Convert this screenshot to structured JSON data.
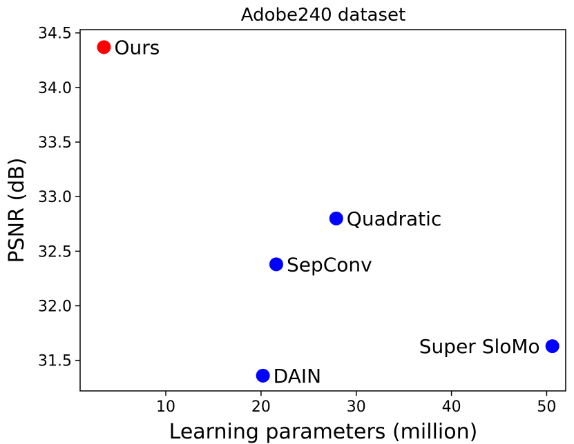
{
  "chart_data": {
    "type": "scatter",
    "title": "Adobe240 dataset",
    "xlabel": "Learning parameters (million)",
    "ylabel": "PSNR (dB)",
    "xlim": [
      1,
      52
    ],
    "ylim": [
      31.22,
      34.53
    ],
    "xticks": [
      10,
      20,
      30,
      40,
      50
    ],
    "yticks": [
      31.5,
      32.0,
      32.5,
      33.0,
      33.5,
      34.0,
      34.5
    ],
    "tick_labels_x": [
      "10",
      "20",
      "30",
      "40",
      "50"
    ],
    "tick_labels_y": [
      "31.5",
      "32.0",
      "32.5",
      "33.0",
      "33.5",
      "34.0",
      "34.5"
    ],
    "grid": false,
    "points": [
      {
        "label": "Ours",
        "x": 3.5,
        "y": 34.37,
        "color": "#ff0000",
        "label_side": "right"
      },
      {
        "label": "Quadratic",
        "x": 27.9,
        "y": 32.8,
        "color": "#0000ff",
        "label_side": "right"
      },
      {
        "label": "SepConv",
        "x": 21.6,
        "y": 32.38,
        "color": "#0000ff",
        "label_side": "right"
      },
      {
        "label": "Super SloMo",
        "x": 50.6,
        "y": 31.63,
        "color": "#0000ff",
        "label_side": "left"
      },
      {
        "label": "DAIN",
        "x": 20.2,
        "y": 31.36,
        "color": "#0000ff",
        "label_side": "right"
      }
    ]
  }
}
